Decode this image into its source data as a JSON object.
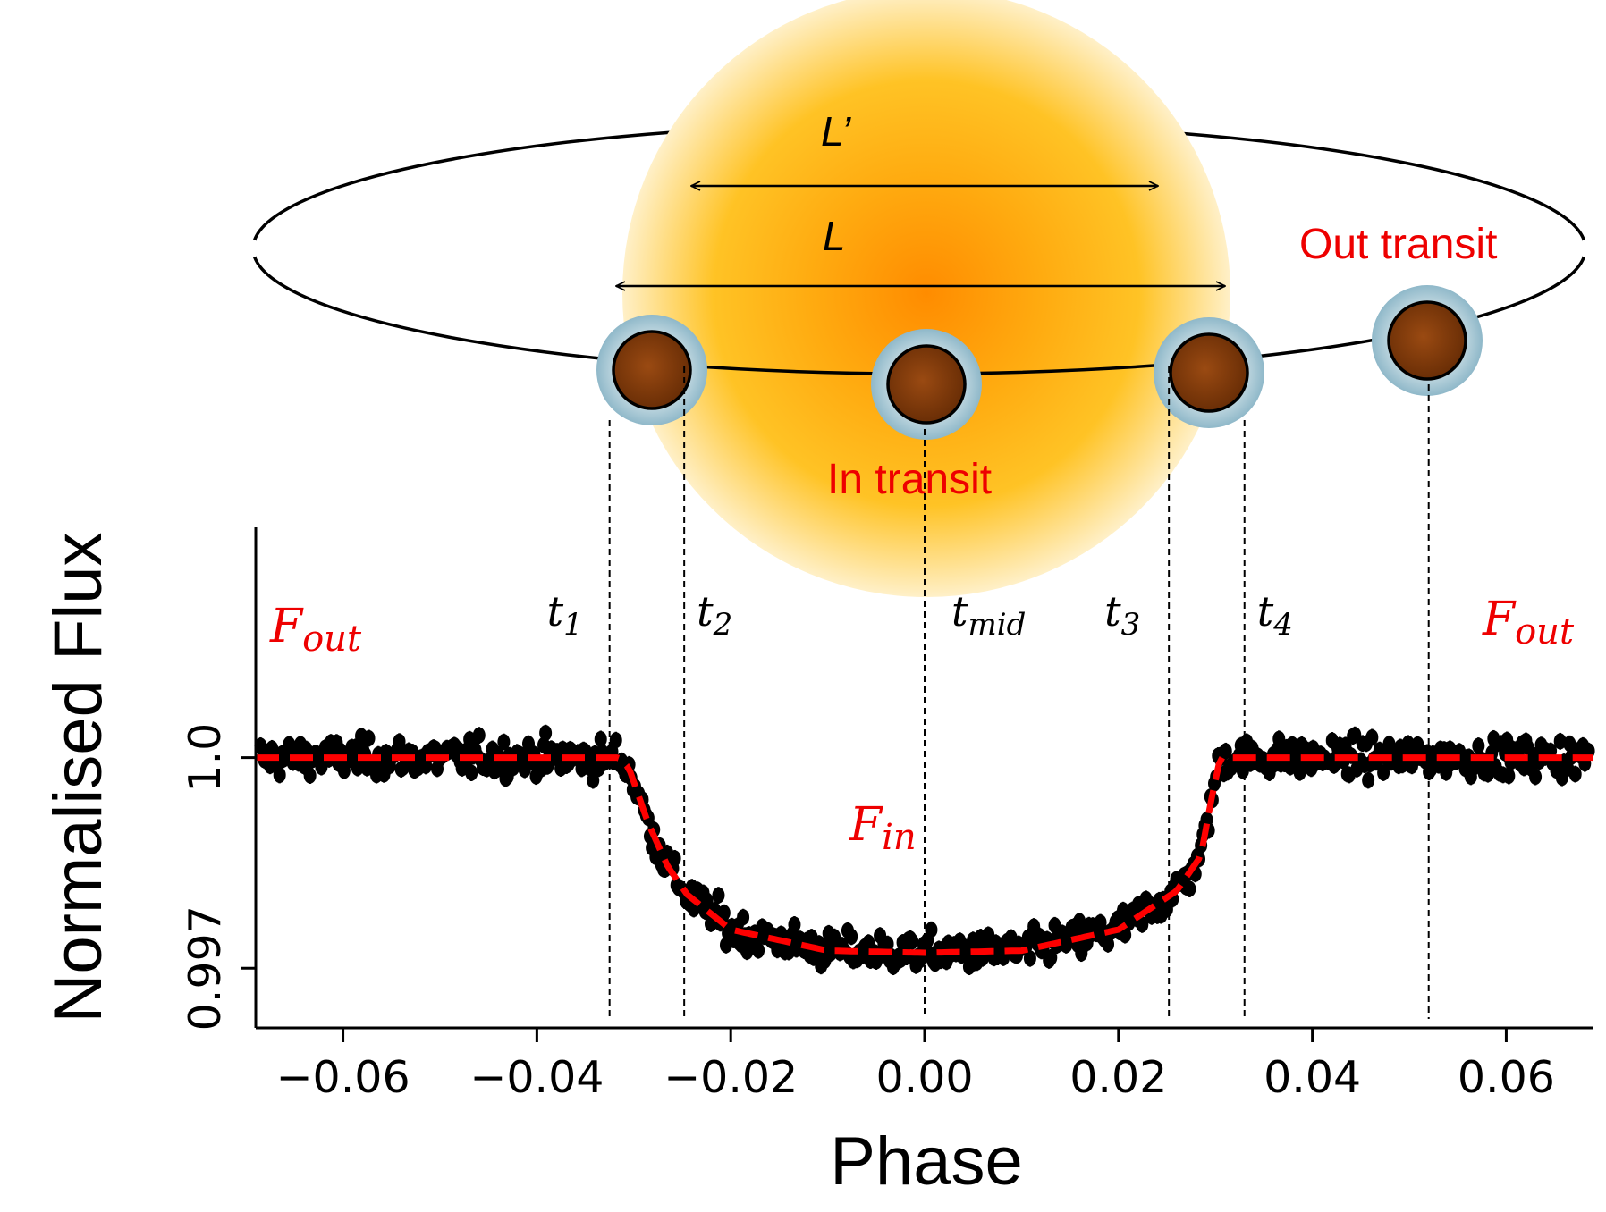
{
  "colors": {
    "accent": "#ee0000",
    "model": "#ff0000",
    "points": "#000000",
    "star_core": "#ff8c00",
    "star_mid": "#ffbf1a",
    "star_edge": "#fff0c8",
    "planet": "#7a3708",
    "halo": "#8fb8c9"
  },
  "diagram": {
    "L_prime_label": "L’",
    "L_label": "L",
    "in_transit_label": "In transit",
    "out_transit_label": "Out transit",
    "contact_times": [
      {
        "main": "t",
        "sub": "1",
        "phase": -0.0325
      },
      {
        "main": "t",
        "sub": "2",
        "phase": -0.0248
      },
      {
        "main": "t",
        "sub": "mid",
        "phase": 0.0
      },
      {
        "main": "t",
        "sub": "3",
        "phase": 0.0252
      },
      {
        "main": "t",
        "sub": "4",
        "phase": 0.033
      }
    ],
    "out_transit_phase": 0.052,
    "F_out_main": "F",
    "F_out_sub": "out",
    "F_in_main": "F",
    "F_in_sub": "in"
  },
  "chart_data": {
    "type": "scatter",
    "title": "",
    "xlabel": "Phase",
    "ylabel": "Normalised Flux",
    "xlim": [
      -0.069,
      0.069
    ],
    "ylim": [
      0.99615,
      1.00328
    ],
    "x_ticks": [
      -0.06,
      -0.04,
      -0.02,
      0.0,
      0.02,
      0.04,
      0.06
    ],
    "x_tick_labels": [
      "−0.06",
      "−0.04",
      "−0.02",
      "0.00",
      "0.02",
      "0.04",
      "0.06"
    ],
    "y_ticks": [
      0.997,
      1.0
    ],
    "y_tick_labels": [
      "0.997",
      "1.0"
    ],
    "grid": false,
    "series": [
      {
        "name": "observations",
        "kind": "points_with_errorbars",
        "n_points": 700,
        "error": 0.00012,
        "scatter": 0.00023
      },
      {
        "name": "transit model",
        "kind": "line",
        "x": [
          -0.069,
          -0.0315,
          -0.0305,
          -0.0285,
          -0.0265,
          -0.0245,
          -0.02,
          -0.01,
          0.0,
          0.01,
          0.02,
          0.026,
          0.0285,
          0.0295,
          0.0305,
          0.069
        ],
        "y": [
          1.0,
          1.0,
          0.99985,
          0.99906,
          0.99845,
          0.99805,
          0.99755,
          0.99725,
          0.99722,
          0.99725,
          0.99755,
          0.9981,
          0.9986,
          0.99935,
          1.0,
          1.0
        ]
      }
    ]
  }
}
